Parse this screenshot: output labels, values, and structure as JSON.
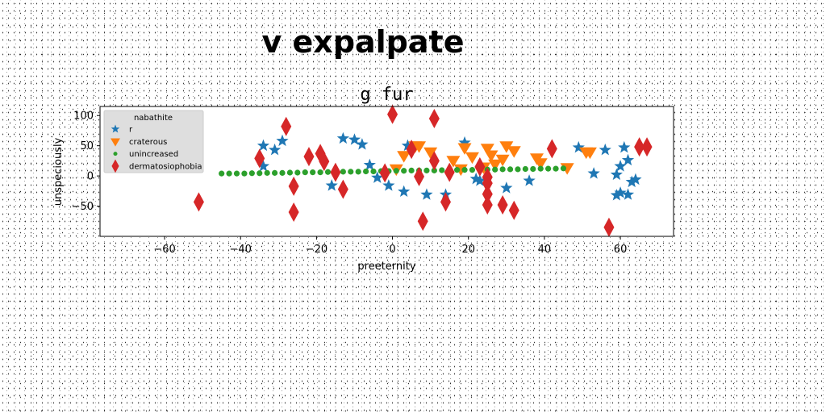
{
  "figure": {
    "suptitle": "v expalpate"
  },
  "chart_data": {
    "type": "scatter",
    "title": "g fur",
    "xlabel": "preeternity",
    "ylabel": "unspeciously",
    "xlim": [
      -77,
      74
    ],
    "ylim": [
      -100,
      115
    ],
    "x_ticks": [
      -60,
      -40,
      -20,
      0,
      20,
      40,
      60
    ],
    "y_ticks": [
      -50,
      0,
      50,
      100
    ],
    "grid": false,
    "legend": {
      "title": "nabathite",
      "placement": "upper-left"
    },
    "colors": {
      "r": "#1f77b4",
      "craterous": "#ff7f0e",
      "unincreased": "#2ca02c",
      "dermatosiophobia": "#d62728"
    },
    "series": [
      {
        "name": "r",
        "marker": "star",
        "color": "#1f77b4",
        "points": [
          [
            -34,
            16
          ],
          [
            -34,
            50
          ],
          [
            -31,
            43
          ],
          [
            -29,
            58
          ],
          [
            -13,
            62
          ],
          [
            -10,
            60
          ],
          [
            -8,
            52
          ],
          [
            -6,
            18
          ],
          [
            -4,
            -3
          ],
          [
            -16,
            -16
          ],
          [
            -1,
            -16
          ],
          [
            3,
            -26
          ],
          [
            9,
            -31
          ],
          [
            14,
            -31
          ],
          [
            4,
            50
          ],
          [
            19,
            55
          ],
          [
            22,
            -5
          ],
          [
            23,
            -8
          ],
          [
            30,
            -20
          ],
          [
            36,
            -8
          ],
          [
            49,
            47
          ],
          [
            53,
            4
          ],
          [
            56,
            43
          ],
          [
            59,
            -32
          ],
          [
            60,
            -28
          ],
          [
            59,
            2
          ],
          [
            60,
            16
          ],
          [
            61,
            47
          ],
          [
            62,
            26
          ],
          [
            62,
            -31
          ],
          [
            63,
            -10
          ],
          [
            64,
            -6
          ]
        ]
      },
      {
        "name": "craterous",
        "marker": "triangle-down",
        "color": "#ff7f0e",
        "points": [
          [
            1,
            12
          ],
          [
            3,
            34
          ],
          [
            6,
            50
          ],
          [
            7,
            50
          ],
          [
            10,
            40
          ],
          [
            16,
            26
          ],
          [
            18,
            12
          ],
          [
            19,
            47
          ],
          [
            21,
            32
          ],
          [
            24,
            15
          ],
          [
            25,
            46
          ],
          [
            26,
            35
          ],
          [
            27,
            20
          ],
          [
            29,
            28
          ],
          [
            30,
            50
          ],
          [
            32,
            42
          ],
          [
            38,
            30
          ],
          [
            39,
            22
          ],
          [
            46,
            14
          ],
          [
            51,
            40
          ],
          [
            52,
            40
          ]
        ]
      },
      {
        "name": "unincreased",
        "marker": "circle",
        "color": "#2ca02c",
        "points": [
          [
            -45,
            4
          ],
          [
            -43,
            4
          ],
          [
            -41,
            4
          ],
          [
            -39,
            4
          ],
          [
            -37,
            4.5
          ],
          [
            -35,
            4.5
          ],
          [
            -33,
            5
          ],
          [
            -31,
            5
          ],
          [
            -29,
            5
          ],
          [
            -27,
            5.5
          ],
          [
            -25,
            5.5
          ],
          [
            -23,
            6
          ],
          [
            -21,
            6
          ],
          [
            -19,
            6
          ],
          [
            -17,
            6.5
          ],
          [
            -15,
            6.5
          ],
          [
            -13,
            7
          ],
          [
            -11,
            7
          ],
          [
            -9,
            7
          ],
          [
            -7,
            7.5
          ],
          [
            -5,
            7.5
          ],
          [
            -3,
            8
          ],
          [
            -1,
            8
          ],
          [
            1,
            8.5
          ],
          [
            3,
            8.5
          ],
          [
            5,
            9
          ],
          [
            7,
            9
          ],
          [
            9,
            9
          ],
          [
            11,
            9
          ],
          [
            13,
            9.5
          ],
          [
            15,
            9.5
          ],
          [
            17,
            10
          ],
          [
            19,
            10
          ],
          [
            21,
            10
          ],
          [
            23,
            10
          ],
          [
            25,
            10.5
          ],
          [
            27,
            10.5
          ],
          [
            29,
            11
          ],
          [
            31,
            11
          ],
          [
            33,
            11
          ],
          [
            35,
            11.5
          ],
          [
            37,
            11.5
          ],
          [
            39,
            12
          ],
          [
            41,
            12
          ],
          [
            43,
            12
          ],
          [
            45,
            12.5
          ]
        ]
      },
      {
        "name": "dermatosiophobia",
        "marker": "diamond",
        "color": "#d62728",
        "points": [
          [
            -51,
            -43
          ],
          [
            -35,
            29
          ],
          [
            -28,
            82
          ],
          [
            -26,
            -17
          ],
          [
            -26,
            -60
          ],
          [
            -22,
            32
          ],
          [
            -19,
            37
          ],
          [
            -18,
            24
          ],
          [
            -15,
            6
          ],
          [
            -13,
            -22
          ],
          [
            0,
            102
          ],
          [
            -2,
            5
          ],
          [
            5,
            44
          ],
          [
            7,
            -1
          ],
          [
            8,
            -75
          ],
          [
            11,
            25
          ],
          [
            11,
            95
          ],
          [
            14,
            -43
          ],
          [
            15,
            6
          ],
          [
            23,
            15
          ],
          [
            25,
            -2
          ],
          [
            25,
            -12
          ],
          [
            25,
            -30
          ],
          [
            25,
            -48
          ],
          [
            29,
            -48
          ],
          [
            32,
            -57
          ],
          [
            42,
            45
          ],
          [
            57,
            -85
          ],
          [
            65,
            48
          ],
          [
            67,
            48
          ]
        ]
      }
    ]
  }
}
